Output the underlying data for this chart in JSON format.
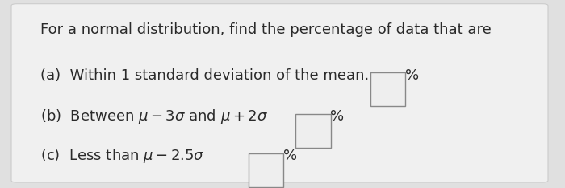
{
  "background_color": "#e0e0e0",
  "card_color": "#f0f0f0",
  "title": "For a normal distribution, find the percentage of data that are",
  "line_a": "(a)  Within 1 standard deviation of the mean.",
  "line_b": "(b)  Between $\\mu - 3\\sigma$ and $\\mu + 2\\sigma$",
  "line_c": "(c)  Less than $\\mu - 2.5\\sigma$",
  "percent": "%",
  "title_fontsize": 13.0,
  "body_fontsize": 13.0,
  "text_color": "#2a2a2a",
  "box_edge_color": "#888888",
  "box_face_color": "#eeeeee"
}
